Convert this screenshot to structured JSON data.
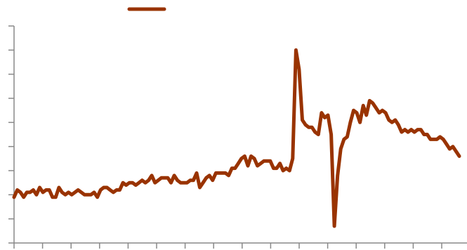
{
  "colors": {
    "series": "#993300",
    "axis": "#888888"
  },
  "chart_data": {
    "type": "line",
    "title": "",
    "xlabel": "",
    "ylabel": "",
    "legend": {
      "placement": "top-left"
    },
    "grid": false,
    "ylim": [
      0,
      9
    ],
    "series": [
      {
        "values": [
          1.9,
          2.2,
          2.1,
          1.9,
          2.1,
          2.1,
          2.2,
          2.0,
          2.3,
          2.1,
          2.2,
          2.2,
          1.9,
          1.9,
          2.3,
          2.1,
          2.0,
          2.1,
          2.0,
          2.1,
          2.2,
          2.1,
          2.0,
          2.0,
          2.0,
          2.1,
          1.9,
          2.2,
          2.3,
          2.3,
          2.2,
          2.1,
          2.2,
          2.2,
          2.5,
          2.4,
          2.5,
          2.5,
          2.4,
          2.5,
          2.6,
          2.5,
          2.6,
          2.8,
          2.5,
          2.6,
          2.7,
          2.7,
          2.7,
          2.5,
          2.8,
          2.6,
          2.5,
          2.5,
          2.5,
          2.6,
          2.6,
          2.9,
          2.3,
          2.5,
          2.7,
          2.8,
          2.6,
          2.9,
          2.9,
          2.9,
          2.9,
          2.8,
          3.1,
          3.1,
          3.3,
          3.5,
          3.6,
          3.2,
          3.6,
          3.5,
          3.2,
          3.3,
          3.4,
          3.4,
          3.4,
          3.1,
          3.1,
          3.3,
          3.0,
          3.1,
          3.0,
          3.5,
          8.0,
          7.2,
          5.1,
          4.9,
          4.8,
          4.8,
          4.6,
          4.5,
          5.4,
          5.2,
          5.3,
          4.5,
          0.7,
          2.8,
          3.9,
          4.3,
          4.4,
          5.0,
          5.5,
          5.4,
          5.0,
          5.7,
          5.3,
          5.9,
          5.8,
          5.6,
          5.4,
          5.5,
          5.4,
          5.1,
          5.0,
          5.1,
          4.9,
          4.6,
          4.7,
          4.6,
          4.7,
          4.6,
          4.7,
          4.7,
          4.5,
          4.5,
          4.3,
          4.3,
          4.3,
          4.4,
          4.3,
          4.1,
          3.9,
          4.0,
          3.8,
          3.6
        ]
      }
    ]
  }
}
